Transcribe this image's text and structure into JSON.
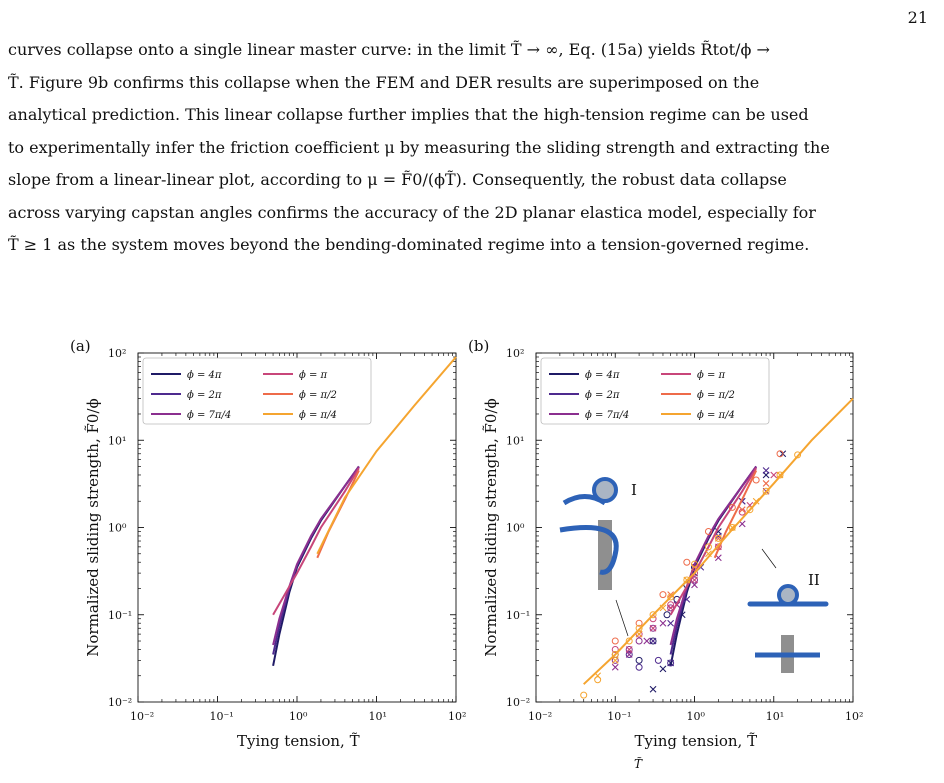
{
  "page": {
    "number": "21",
    "paragraph": [
      "curves collapse onto a single linear master curve: in the limit T̃ → ∞, Eq. (15a) yields R̃tot/ϕ →",
      "T̃. Figure 9b confirms this collapse when the FEM and DER results are superimposed on the",
      "analytical prediction. This linear collapse further implies that the high-tension regime can be used",
      "to experimentally infer the friction coefficient μ by measuring the sliding strength and extracting the",
      "slope from a linear-linear plot, according to μ = F̃0/(ϕT̃). Consequently, the robust data collapse",
      "across varying capstan angles confirms the accuracy of the 2D planar elastica model, especially for",
      "T̃ ≥ 1 as the system moves beyond the bending-dominated regime into a tension-governed regime."
    ],
    "caption_fragment": "T̃"
  },
  "chart_data": [
    {
      "panel": "(a)",
      "type": "line",
      "xlabel": "Tying tension, T̃",
      "ylabel": "Normalized sliding strength, F̃0/ϕ",
      "xscale": "log",
      "yscale": "log",
      "xlim": [
        0.01,
        100
      ],
      "ylim": [
        0.01,
        100
      ],
      "xticks": [
        "10⁻²",
        "10⁻¹",
        "10⁰",
        "10¹",
        "10²"
      ],
      "yticks": [
        "10⁻²",
        "10⁻¹",
        "10⁰",
        "10¹",
        "10²"
      ],
      "legend_position": "top-left",
      "series": [
        {
          "name": "ϕ = 4π",
          "color": "#1f1a66",
          "x": [
            0.5,
            0.6,
            0.8,
            1.0,
            1.5,
            2.0,
            4.0,
            6.0
          ],
          "y": [
            0.026,
            0.06,
            0.18,
            0.35,
            0.75,
            1.2,
            3.0,
            5.0
          ]
        },
        {
          "name": "ϕ = 2π",
          "color": "#4e2a8e",
          "x": [
            0.5,
            0.6,
            0.8,
            1.0,
            1.5,
            2.0,
            4.0,
            6.0
          ],
          "y": [
            0.035,
            0.075,
            0.2,
            0.37,
            0.78,
            1.25,
            3.0,
            5.0
          ]
        },
        {
          "name": "ϕ = 7π/4",
          "color": "#8b2f8f",
          "x": [
            0.5,
            0.6,
            0.8,
            1.0,
            1.5,
            2.0,
            4.0,
            6.0
          ],
          "y": [
            0.045,
            0.09,
            0.21,
            0.38,
            0.8,
            1.25,
            3.0,
            5.0
          ]
        },
        {
          "name": "ϕ = π",
          "color": "#c8467a",
          "x": [
            0.5,
            0.7,
            1.0,
            1.5,
            2.0,
            4.0,
            6.0
          ],
          "y": [
            0.1,
            0.17,
            0.3,
            0.6,
            1.0,
            2.6,
            4.8
          ]
        },
        {
          "name": "ϕ = π/2",
          "color": "#ee6b4a",
          "x": [
            1.8,
            2.5,
            4.0,
            6.0
          ],
          "y": [
            0.45,
            0.9,
            2.1,
            4.5
          ]
        },
        {
          "name": "ϕ = π/4",
          "color": "#f5a530",
          "x": [
            1.8,
            4.0,
            10.0,
            30.0,
            100.0
          ],
          "y": [
            0.5,
            2.2,
            7.5,
            25.0,
            90.0
          ]
        }
      ]
    },
    {
      "panel": "(b)",
      "type": "scatter",
      "xlabel": "Tying tension, T̃",
      "ylabel": "Normalized sliding strength, F̃0/ϕ",
      "xscale": "log",
      "yscale": "log",
      "xlim": [
        0.01,
        100
      ],
      "ylim": [
        0.01,
        100
      ],
      "xticks": [
        "10⁻²",
        "10⁻¹",
        "10⁰",
        "10¹",
        "10²"
      ],
      "yticks": [
        "10⁻²",
        "10⁻¹",
        "10⁰",
        "10¹",
        "10²"
      ],
      "legend_position": "top-left",
      "annotations": [
        "I",
        "II"
      ],
      "series": [
        {
          "name": "ϕ = 4π",
          "color": "#1f1a66",
          "line": {
            "x": [
              0.5,
              0.6,
              0.8,
              1.0,
              1.5,
              2.0,
              4.0,
              6.0
            ],
            "y": [
              0.026,
              0.06,
              0.18,
              0.35,
              0.75,
              1.2,
              3.0,
              5.0
            ]
          },
          "der_o": {
            "x": [
              0.2,
              0.3,
              0.45,
              0.6,
              0.8,
              1.0
            ],
            "y": [
              0.03,
              0.05,
              0.1,
              0.15,
              0.22,
              0.35
            ]
          },
          "fem_x": {
            "x": [
              0.3,
              0.4,
              0.5,
              0.7,
              1.0,
              2.0,
              4.0,
              8.0,
              13.0
            ],
            "y": [
              0.014,
              0.024,
              0.028,
              0.1,
              0.3,
              0.9,
              2.0,
              4.0,
              7.0
            ]
          }
        },
        {
          "name": "ϕ = 2π",
          "color": "#4e2a8e",
          "line": {
            "x": [
              0.5,
              0.6,
              0.8,
              1.0,
              1.5,
              2.0,
              4.0,
              6.0
            ],
            "y": [
              0.035,
              0.075,
              0.2,
              0.37,
              0.78,
              1.25,
              3.0,
              5.0
            ]
          },
          "der_o": {
            "x": [
              0.1,
              0.15,
              0.2,
              0.35,
              0.5
            ],
            "y": [
              0.035,
              0.035,
              0.025,
              0.03,
              0.028
            ]
          },
          "fem_x": {
            "x": [
              0.3,
              0.5,
              0.8,
              1.2,
              2.0,
              4.0,
              8.0
            ],
            "y": [
              0.05,
              0.08,
              0.15,
              0.35,
              0.8,
              2.0,
              4.5
            ]
          }
        },
        {
          "name": "ϕ = 7π/4",
          "color": "#8b2f8f",
          "line": {
            "x": [
              0.5,
              0.6,
              0.8,
              1.0,
              1.5,
              2.0,
              4.0,
              6.0
            ],
            "y": [
              0.045,
              0.09,
              0.21,
              0.38,
              0.8,
              1.25,
              3.0,
              5.0
            ]
          },
          "der_o": {
            "x": [
              0.1,
              0.15,
              0.2,
              0.3,
              0.5,
              1.0
            ],
            "y": [
              0.03,
              0.04,
              0.05,
              0.07,
              0.12,
              0.25
            ]
          },
          "fem_x": {
            "x": [
              0.1,
              0.15,
              0.25,
              0.4,
              0.6,
              1.0,
              2.0,
              4.0,
              8.0
            ],
            "y": [
              0.025,
              0.035,
              0.05,
              0.08,
              0.13,
              0.22,
              0.45,
              1.1,
              2.6
            ]
          }
        },
        {
          "name": "ϕ = π",
          "color": "#c8467a",
          "line": {
            "x": [
              0.5,
              0.7,
              1.0,
              1.5,
              2.0,
              4.0,
              6.0
            ],
            "y": [
              0.1,
              0.17,
              0.3,
              0.6,
              1.0,
              2.6,
              4.8
            ]
          },
          "der_o": {
            "x": [
              0.1,
              0.2,
              0.3,
              0.5,
              1.0,
              2.0,
              4.0
            ],
            "y": [
              0.04,
              0.06,
              0.09,
              0.13,
              0.3,
              0.6,
              1.5
            ]
          },
          "fem_x": {
            "x": [
              0.15,
              0.3,
              0.5,
              1.0,
              2.0,
              5.0,
              10.0
            ],
            "y": [
              0.04,
              0.07,
              0.12,
              0.25,
              0.6,
              1.8,
              4.0
            ]
          }
        },
        {
          "name": "ϕ = π/2",
          "color": "#ee6b4a",
          "line": {
            "x": [
              1.8,
              2.5,
              4.0,
              6.0
            ],
            "y": [
              0.45,
              0.9,
              2.1,
              4.5
            ]
          },
          "der_o": {
            "x": [
              0.1,
              0.2,
              0.4,
              0.8,
              1.5,
              3.0,
              6.0,
              12.0
            ],
            "y": [
              0.05,
              0.08,
              0.17,
              0.4,
              0.9,
              1.7,
              3.5,
              7.0
            ]
          },
          "fem_x": {
            "x": [
              0.2,
              0.5,
              1.0,
              2.0,
              4.0,
              8.0
            ],
            "y": [
              0.06,
              0.17,
              0.35,
              0.75,
              1.6,
              3.2
            ]
          }
        },
        {
          "name": "ϕ = π/4",
          "color": "#f5a530",
          "line": {
            "x": [
              0.04,
              0.1,
              0.3,
              1.0,
              3.0,
              10.0,
              30.0,
              100.0
            ],
            "y": [
              0.016,
              0.035,
              0.1,
              0.3,
              0.95,
              3.2,
              10.0,
              30.0
            ]
          },
          "der_o": {
            "x": [
              0.04,
              0.06,
              0.1,
              0.15,
              0.2,
              0.3,
              0.5,
              0.8,
              1.0,
              1.5,
              2.0,
              3.0,
              5.0,
              8.0,
              12.0,
              20.0
            ],
            "y": [
              0.012,
              0.018,
              0.035,
              0.05,
              0.07,
              0.1,
              0.16,
              0.25,
              0.38,
              0.6,
              0.75,
              1.0,
              1.6,
              2.6,
              4.0,
              6.8
            ]
          },
          "fem_x": {
            "x": [
              0.06,
              0.1,
              0.2,
              0.4,
              0.8,
              1.5,
              3.0,
              6.0,
              12.0
            ],
            "y": [
              0.02,
              0.03,
              0.06,
              0.12,
              0.25,
              0.5,
              1.0,
              2.0,
              4.0
            ]
          }
        }
      ]
    }
  ]
}
